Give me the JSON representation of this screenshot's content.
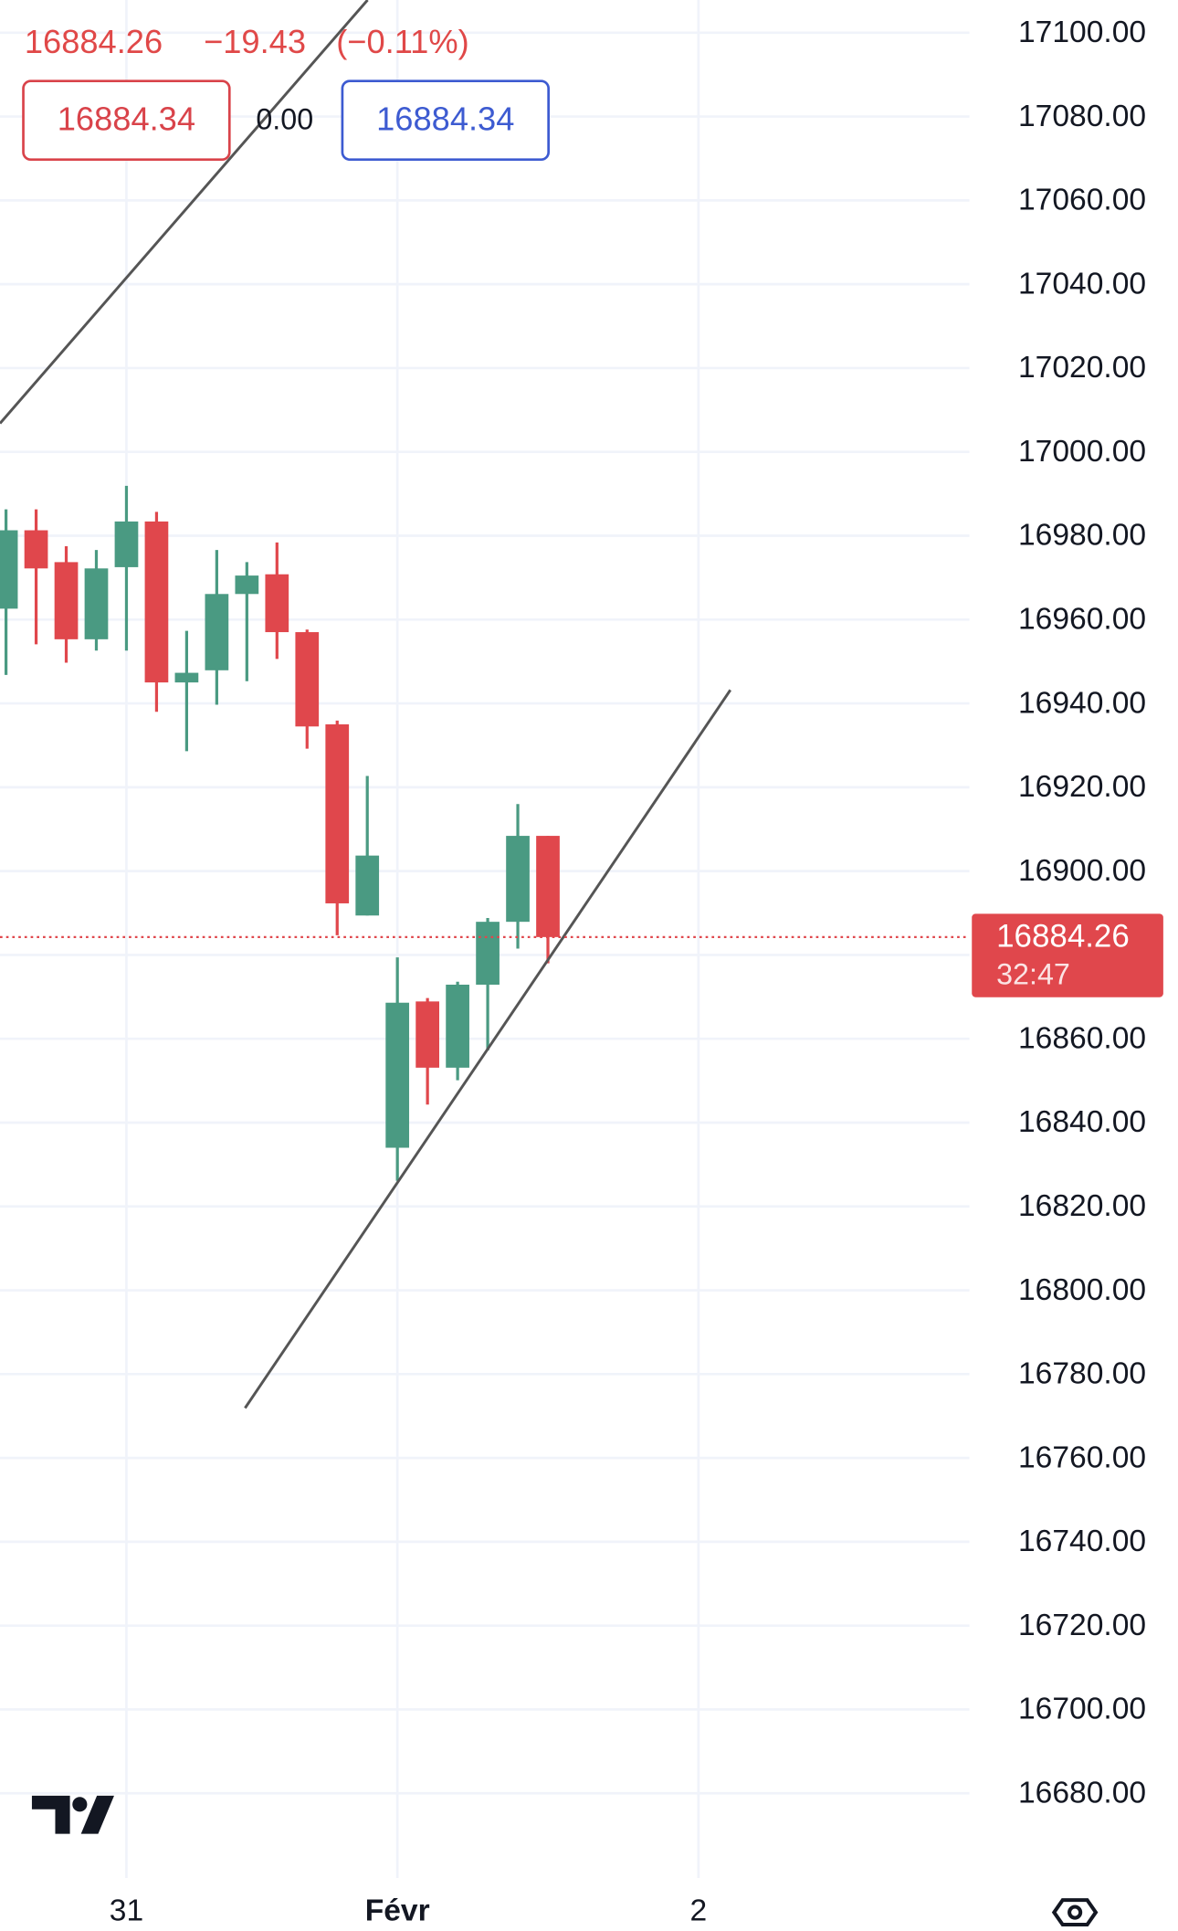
{
  "chart_data": {
    "type": "candlestick",
    "header": {
      "price": "16884.26",
      "change": "−19.43",
      "change_pct": "(−0.11%)",
      "bid": "16884.34",
      "spread": "0.00",
      "ask": "16884.34"
    },
    "x": [
      0,
      1,
      2,
      3,
      4,
      5,
      6,
      7,
      8,
      9,
      10,
      11,
      12,
      13,
      14,
      15,
      16,
      17,
      18
    ],
    "open": [
      16962.6,
      16981.3,
      16973.7,
      16955.3,
      16972.5,
      16983.4,
      16945.0,
      16947.9,
      16966.1,
      16970.8,
      16957.0,
      16935.0,
      16889.4,
      16834.0,
      16868.9,
      16853.1,
      16872.9,
      16887.9,
      16908.4
    ],
    "high": [
      16986.3,
      16986.3,
      16977.5,
      16976.6,
      16991.9,
      16985.7,
      16957.3,
      16976.6,
      16973.7,
      16978.4,
      16957.6,
      16935.9,
      16922.7,
      16879.4,
      16869.7,
      16873.6,
      16888.8,
      16916.0,
      16908.4
    ],
    "low": [
      16946.8,
      16954.1,
      16949.7,
      16952.6,
      16952.6,
      16938.0,
      16928.6,
      16939.7,
      16945.3,
      16950.6,
      16929.2,
      16884.7,
      16889.4,
      16826.1,
      16844.3,
      16850.1,
      16857.2,
      16881.5,
      16878.0
    ],
    "close": [
      16981.3,
      16972.2,
      16955.3,
      16972.2,
      16983.4,
      16945.0,
      16947.3,
      16966.1,
      16970.5,
      16957.0,
      16934.5,
      16892.3,
      16903.7,
      16868.6,
      16853.1,
      16872.9,
      16887.9,
      16908.4,
      16884.26
    ],
    "up_color": "#4a9a82",
    "down_color": "#e0474c",
    "last_price": 16884.26,
    "countdown": "32:47",
    "trendlines": [
      {
        "x": [
          -0.2,
          12.01
        ],
        "y": [
          17006.8,
          17107.8
        ],
        "color": "#555555"
      },
      {
        "x": [
          7.94,
          24.06
        ],
        "y": [
          16771.9,
          16943.2
        ],
        "color": "#555555"
      }
    ],
    "xlim": [
      -0.2,
      32
    ],
    "ylim": [
      16659.8,
      17107.8
    ],
    "xticks": [
      {
        "value": 4,
        "label": "31"
      },
      {
        "value": 13,
        "label": "Févr"
      },
      {
        "value": 23,
        "label": "2"
      }
    ],
    "yticks": [
      {
        "value": 17100,
        "label": "17100.00"
      },
      {
        "value": 17080,
        "label": "17080.00"
      },
      {
        "value": 17060,
        "label": "17060.00"
      },
      {
        "value": 17040,
        "label": "17040.00"
      },
      {
        "value": 17020,
        "label": "17020.00"
      },
      {
        "value": 17000,
        "label": "17000.00"
      },
      {
        "value": 16980,
        "label": "16980.00"
      },
      {
        "value": 16960,
        "label": "16960.00"
      },
      {
        "value": 16940,
        "label": "16940.00"
      },
      {
        "value": 16920,
        "label": "16920.00"
      },
      {
        "value": 16900,
        "label": "16900.00"
      },
      {
        "value": 16880,
        "label": "16880.00"
      },
      {
        "value": 16860,
        "label": "16860.00"
      },
      {
        "value": 16840,
        "label": "16840.00"
      },
      {
        "value": 16820,
        "label": "16820.00"
      },
      {
        "value": 16800,
        "label": "16800.00"
      },
      {
        "value": 16780,
        "label": "16780.00"
      },
      {
        "value": 16760,
        "label": "16760.00"
      },
      {
        "value": 16740,
        "label": "16740.00"
      },
      {
        "value": 16720,
        "label": "16720.00"
      },
      {
        "value": 16700,
        "label": "16700.00"
      },
      {
        "value": 16680,
        "label": "16680.00"
      }
    ],
    "grid": true
  }
}
